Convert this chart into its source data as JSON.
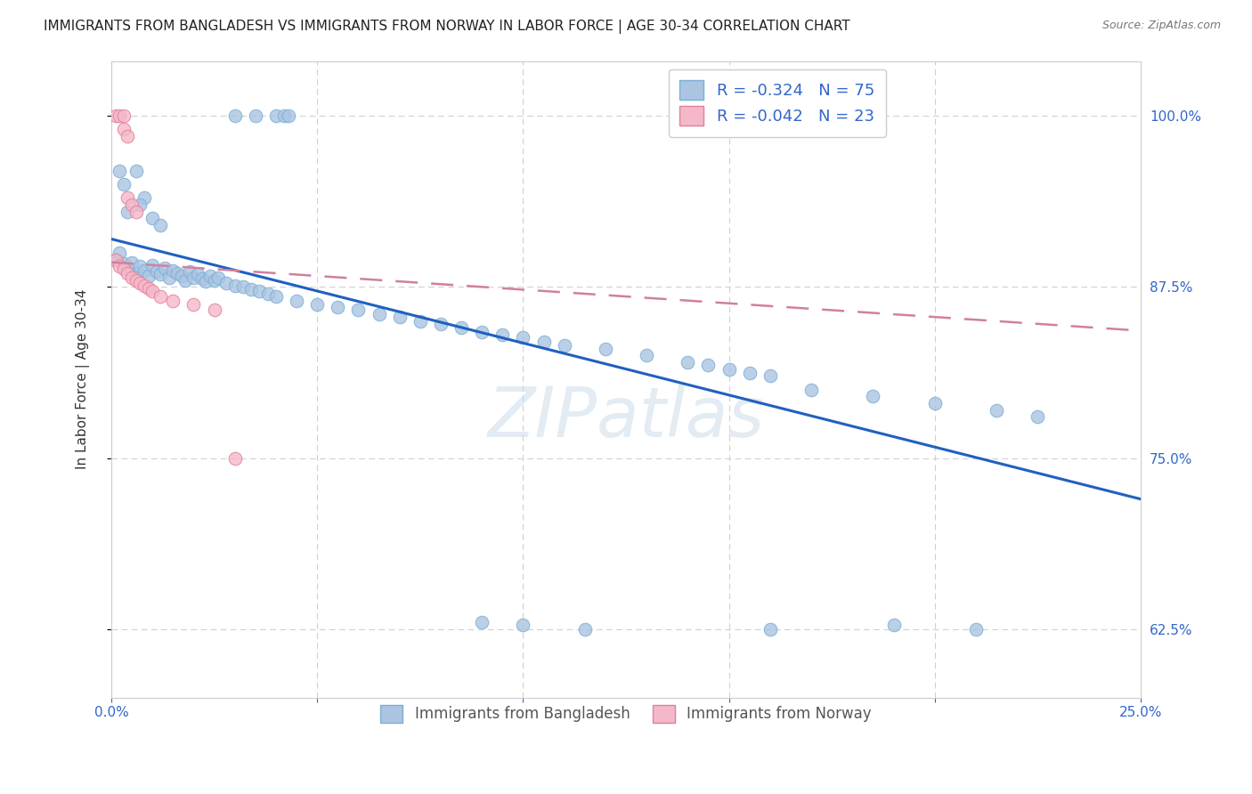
{
  "title": "IMMIGRANTS FROM BANGLADESH VS IMMIGRANTS FROM NORWAY IN LABOR FORCE | AGE 30-34 CORRELATION CHART",
  "source": "Source: ZipAtlas.com",
  "ylabel": "In Labor Force | Age 30-34",
  "xlim": [
    0.0,
    0.25
  ],
  "ylim": [
    0.575,
    1.04
  ],
  "yticks": [
    0.625,
    0.75,
    0.875,
    1.0
  ],
  "ytick_labels": [
    "62.5%",
    "75.0%",
    "87.5%",
    "100.0%"
  ],
  "xtick_labels": [
    "0.0%",
    "",
    "",
    "",
    "",
    "25.0%"
  ],
  "grid_color": "#d0d0d0",
  "background_color": "#ffffff",
  "bangladesh_color": "#aac4e2",
  "norway_color": "#f5b8c8",
  "bangladesh_edge": "#7aafd4",
  "norway_edge": "#e0809a",
  "trend_blue": "#2060c0",
  "trend_pink": "#d080a0",
  "R_bangladesh": -0.324,
  "N_bangladesh": 75,
  "R_norway": -0.042,
  "N_norway": 23,
  "legend_label_bangladesh": "Immigrants from Bangladesh",
  "legend_label_norway": "Immigrants from Norway",
  "watermark": "ZIPatlas"
}
